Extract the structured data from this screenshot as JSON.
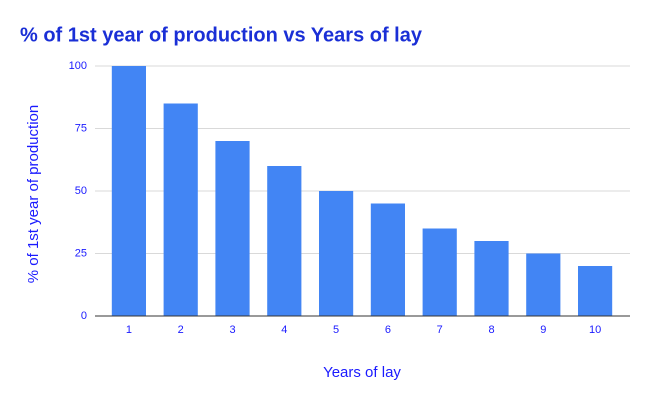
{
  "chart_data": {
    "type": "bar",
    "title": "% of 1st year of production vs Years of lay",
    "x_label": "Years of lay",
    "y_label": "% of 1st year of production",
    "categories": [
      "1",
      "2",
      "3",
      "4",
      "5",
      "6",
      "7",
      "8",
      "9",
      "10"
    ],
    "values": [
      100,
      85,
      70,
      60,
      50,
      45,
      35,
      30,
      25,
      20
    ],
    "color": "#4285f4",
    "ylim": [
      0,
      100
    ],
    "yticks": [
      0,
      25,
      50,
      75,
      100
    ],
    "grid": true
  }
}
